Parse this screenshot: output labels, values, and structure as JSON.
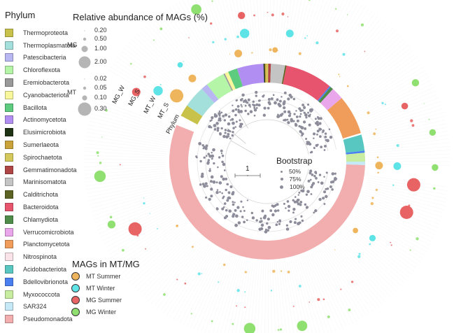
{
  "figure": {
    "type": "circular-phylogenetic-tree",
    "tip_count_approx": 500
  },
  "phylum_legend": {
    "title": "Phylum",
    "items": [
      {
        "name": "Thermoproteota",
        "color": "#c9c24a"
      },
      {
        "name": "Thermoplasmatota",
        "color": "#a3dfdb"
      },
      {
        "name": "Patescibacteria",
        "color": "#b9b7f2"
      },
      {
        "name": "Chloroflexota",
        "color": "#b4f5a8"
      },
      {
        "name": "Eremiobacterota",
        "color": "#999999"
      },
      {
        "name": "Cyanobacteriota",
        "color": "#f9f79b"
      },
      {
        "name": "Bacillota",
        "color": "#5dcc7e"
      },
      {
        "name": "Actinomycetota",
        "color": "#b18ef2"
      },
      {
        "name": "Elusimicrobiota",
        "color": "#1e3314"
      },
      {
        "name": "Sumerlaeota",
        "color": "#c9a23a"
      },
      {
        "name": "Spirochaetota",
        "color": "#d4c85a"
      },
      {
        "name": "Gemmatimonadota",
        "color": "#b04545"
      },
      {
        "name": "Marinisomatota",
        "color": "#c4c4c4"
      },
      {
        "name": "Calditrichota",
        "color": "#5c6322"
      },
      {
        "name": "Bacteroidota",
        "color": "#e6546e"
      },
      {
        "name": "Chlamydiota",
        "color": "#4f8c4a"
      },
      {
        "name": "Verrucomicrobiota",
        "color": "#eaa6ea"
      },
      {
        "name": "Planctomycetota",
        "color": "#f09d5c"
      },
      {
        "name": "Nitrospinota",
        "color": "#fae4ea"
      },
      {
        "name": "Acidobacteriota",
        "color": "#58c7c2"
      },
      {
        "name": "Bdellovibrionota",
        "color": "#4a7ff0"
      },
      {
        "name": "Myxococcota",
        "color": "#c8eca0"
      },
      {
        "name": "SAR324",
        "color": "#c6e9f7"
      },
      {
        "name": "Pseudomonadota",
        "color": "#f2aeae"
      }
    ]
  },
  "phylum_ring": [
    {
      "phylum": "Pseudomonadota",
      "start_deg": 92,
      "end_deg": 292
    },
    {
      "phylum": "Thermoproteota",
      "start_deg": 298,
      "end_deg": 305
    },
    {
      "phylum": "Thermoplasmatota",
      "start_deg": 305,
      "end_deg": 318
    },
    {
      "phylum": "Patescibacteria",
      "start_deg": 318,
      "end_deg": 322
    },
    {
      "phylum": "Chloroflexota",
      "start_deg": 322,
      "end_deg": 333.5
    },
    {
      "phylum": "Eremiobacterota",
      "start_deg": 333.5,
      "end_deg": 334.3
    },
    {
      "phylum": "Cyanobacteriota",
      "start_deg": 334.3,
      "end_deg": 336.5
    },
    {
      "phylum": "Bacillota",
      "start_deg": 336.5,
      "end_deg": 342
    },
    {
      "phylum": "Actinomycetota",
      "start_deg": 342,
      "end_deg": 357.8
    },
    {
      "phylum": "Elusimicrobiota",
      "start_deg": 357.8,
      "end_deg": 358.6
    },
    {
      "phylum": "Sumerlaeota",
      "start_deg": 358.6,
      "end_deg": 359.4
    },
    {
      "phylum": "Spirochaetota",
      "start_deg": 359.4,
      "end_deg": 360.6
    },
    {
      "phylum": "Gemmatimonadota",
      "start_deg": 360.6,
      "end_deg": 362.2
    },
    {
      "phylum": "Marinisomatota",
      "start_deg": 362.2,
      "end_deg": 370.6
    },
    {
      "phylum": "Calditrichota",
      "start_deg": 370.6,
      "end_deg": 371.4
    },
    {
      "phylum": "Bacteroidota",
      "start_deg": 371.4,
      "end_deg": 399.6
    },
    {
      "phylum": "Bdellovibrionota",
      "start_deg": 399.6,
      "end_deg": 400.4
    },
    {
      "phylum": "Chlamydiota",
      "start_deg": 400.4,
      "end_deg": 402.2
    },
    {
      "phylum": "Verrucomicrobiota",
      "start_deg": 402.2,
      "end_deg": 409.5
    },
    {
      "phylum": "Planctomycetota",
      "start_deg": 409.5,
      "end_deg": 433
    },
    {
      "phylum": "Acidobacteriota",
      "start_deg": 434,
      "end_deg": 443.6
    },
    {
      "phylum": "Bdellovibrionota",
      "start_deg": 443.6,
      "end_deg": 444.8
    },
    {
      "phylum": "Myxococcota",
      "start_deg": 444.8,
      "end_deg": 450
    },
    {
      "phylum": "SAR324",
      "start_deg": 450,
      "end_deg": 452
    }
  ],
  "ring_labels": [
    "Phylum",
    "MT_S",
    "MT_W",
    "MG_S",
    "MG_W"
  ],
  "abundance_legend": {
    "title": "Relative abundance of MAGs (%)",
    "groups": [
      {
        "name": "MG",
        "values": [
          "0.20",
          "0.50",
          "1.00",
          "2.00"
        ]
      },
      {
        "name": "MT",
        "values": [
          "0.02",
          "0.05",
          "0.10",
          "0.30"
        ]
      }
    ],
    "color": "#b5b5b5"
  },
  "mag_legend": {
    "title": "MAGs in MT/MG",
    "items": [
      {
        "name": "MT Summer",
        "color": "#efb55c"
      },
      {
        "name": "MT Winter",
        "color": "#5ee3e6"
      },
      {
        "name": "MG Summer",
        "color": "#e86464"
      },
      {
        "name": "MG Winter",
        "color": "#8fe070"
      }
    ]
  },
  "bootstrap_legend": {
    "title": "Bootstrap",
    "items": [
      "50%",
      "75%",
      "100%"
    ],
    "color": "#8c8c9a"
  },
  "scale_bar": {
    "label": "1"
  },
  "highlighted_bubbles": [
    {
      "ring": "MT_S",
      "angle_deg": 306,
      "value_pct": 0.3
    },
    {
      "ring": "MT_S",
      "angle_deg": 318,
      "value_pct": 0.1
    },
    {
      "ring": "MT_S",
      "angle_deg": 345,
      "value_pct": 0.1
    },
    {
      "ring": "MT_S",
      "angle_deg": 4,
      "value_pct": 0.05
    },
    {
      "ring": "MT_S",
      "angle_deg": 92,
      "value_pct": 0.1
    },
    {
      "ring": "MT_S",
      "angle_deg": 128,
      "value_pct": 0.05
    },
    {
      "ring": "MT_W",
      "angle_deg": 303,
      "value_pct": 0.15
    },
    {
      "ring": "MT_W",
      "angle_deg": 318,
      "value_pct": 0.05
    },
    {
      "ring": "MT_W",
      "angle_deg": 350,
      "value_pct": 0.15
    },
    {
      "ring": "MT_W",
      "angle_deg": 10,
      "value_pct": 0.1
    },
    {
      "ring": "MT_W",
      "angle_deg": 92,
      "value_pct": 0.1
    },
    {
      "ring": "MT_W",
      "angle_deg": 126,
      "value_pct": 0.07
    },
    {
      "ring": "MG_S",
      "angle_deg": 243,
      "value_pct": 2.0
    },
    {
      "ring": "MG_S",
      "angle_deg": 110,
      "value_pct": 2.0
    },
    {
      "ring": "MG_S",
      "angle_deg": 99,
      "value_pct": 2.0
    },
    {
      "ring": "MG_S",
      "angle_deg": 298,
      "value_pct": 0.8
    },
    {
      "ring": "MG_S",
      "angle_deg": 350,
      "value_pct": 0.6
    },
    {
      "ring": "MG_S",
      "angle_deg": 68,
      "value_pct": 0.5
    },
    {
      "ring": "MG_W",
      "angle_deg": 265,
      "value_pct": 1.5
    },
    {
      "ring": "MG_W",
      "angle_deg": 186,
      "value_pct": 1.5
    },
    {
      "ring": "MG_W",
      "angle_deg": 168,
      "value_pct": 1.2
    },
    {
      "ring": "MG_W",
      "angle_deg": 335,
      "value_pct": 1.2
    },
    {
      "ring": "MG_W",
      "angle_deg": 62,
      "value_pct": 0.6
    },
    {
      "ring": "MG_W",
      "angle_deg": 80,
      "value_pct": 0.5
    },
    {
      "ring": "MG_W",
      "angle_deg": 92,
      "value_pct": 0.5
    },
    {
      "ring": "MG_W",
      "angle_deg": 248,
      "value_pct": 0.7
    }
  ]
}
